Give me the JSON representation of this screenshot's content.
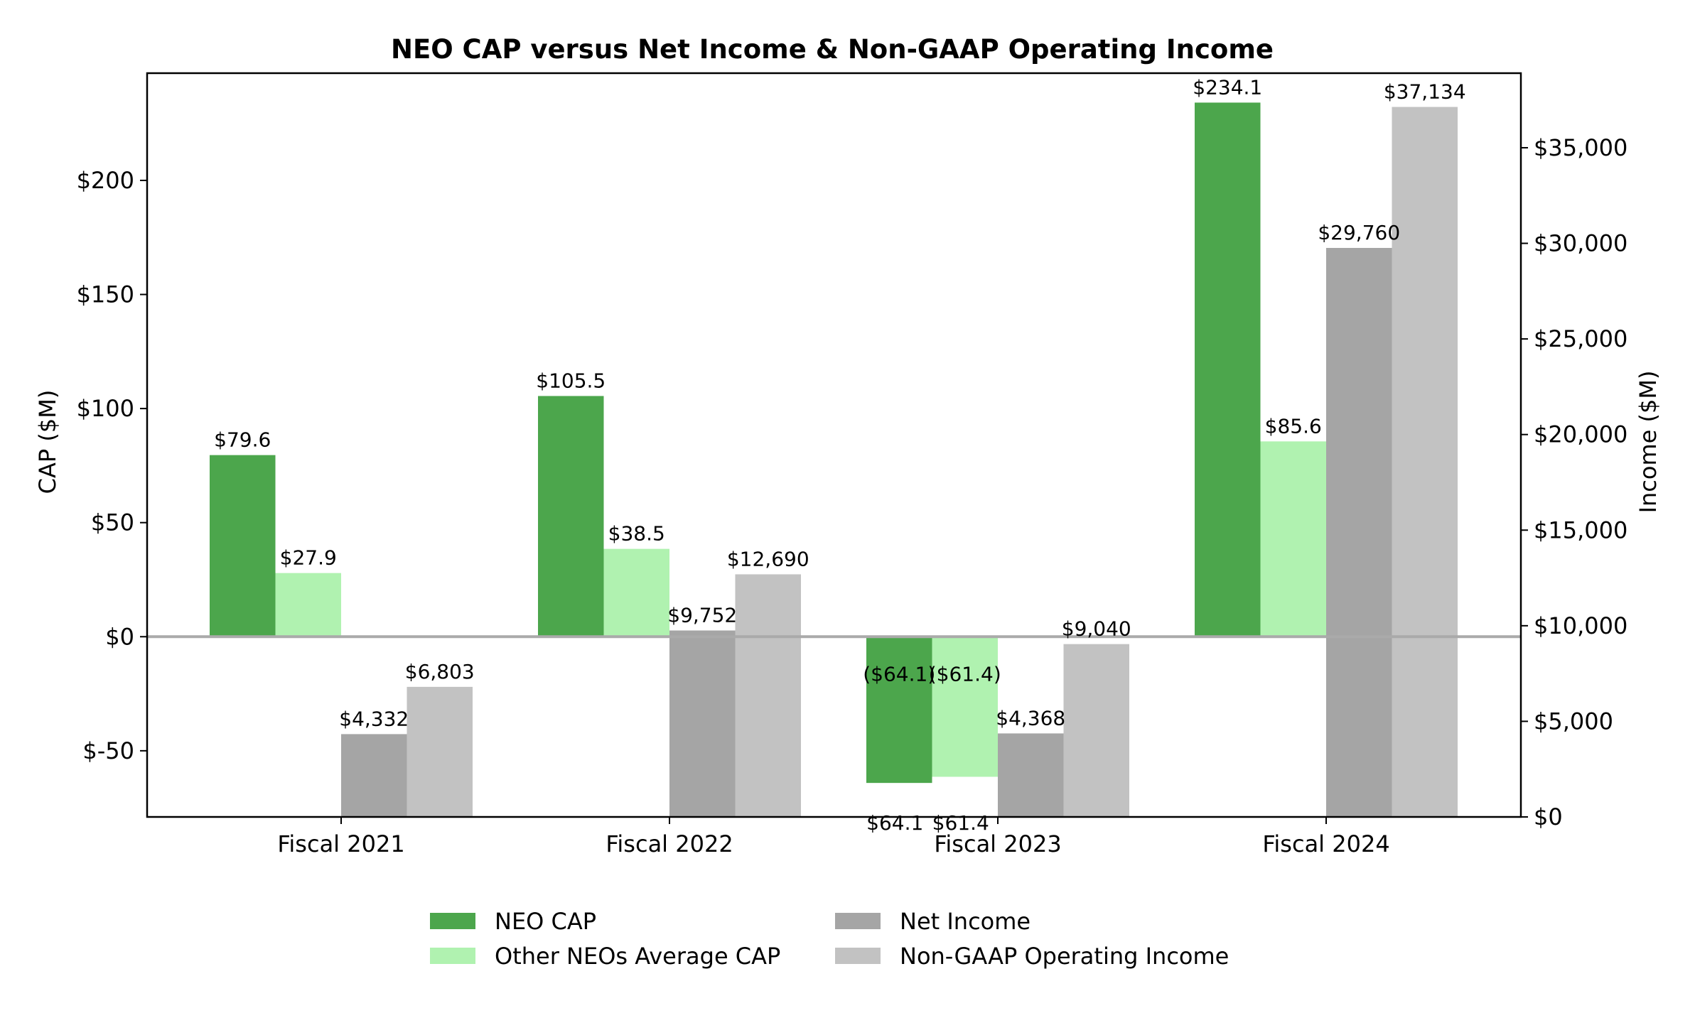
{
  "chart_data": {
    "type": "bar",
    "title": "NEO CAP versus Net Income & Non-GAAP Operating Income",
    "categories": [
      "Fiscal 2021",
      "Fiscal 2022",
      "Fiscal 2023",
      "Fiscal 2024"
    ],
    "left_axis": {
      "label": "CAP ($M)",
      "range": [
        -79,
        247
      ],
      "ticks": [
        -50,
        0,
        50,
        100,
        150,
        200
      ],
      "tick_labels": [
        "$-50",
        "$0",
        "$50",
        "$100",
        "$150",
        "$200"
      ]
    },
    "right_axis": {
      "label": "Income ($M)",
      "range": [
        0,
        38900
      ],
      "ticks": [
        0,
        5000,
        10000,
        15000,
        20000,
        25000,
        30000,
        35000
      ],
      "tick_labels": [
        "$0",
        "$5,000",
        "$10,000",
        "$15,000",
        "$20,000",
        "$25,000",
        "$30,000",
        "$35,000"
      ]
    },
    "series": [
      {
        "name": "NEO CAP",
        "axis": "left",
        "color": "#4ca64c",
        "values": [
          79.6,
          105.5,
          -64.1,
          234.1
        ],
        "labels": [
          "$79.6",
          "$105.5",
          "($64.1)",
          "$234.1"
        ],
        "extra_labels": [
          "",
          "",
          "$64.1",
          ""
        ]
      },
      {
        "name": "Other NEOs Average CAP",
        "axis": "left",
        "color": "#b0f2b0",
        "values": [
          27.9,
          38.5,
          -61.4,
          85.6
        ],
        "labels": [
          "$27.9",
          "$38.5",
          "($61.4)",
          "$85.6"
        ],
        "extra_labels": [
          "",
          "",
          "$61.4",
          ""
        ]
      },
      {
        "name": "Net Income",
        "axis": "right",
        "color": "#a5a5a5",
        "values": [
          4332,
          9752,
          4368,
          29760
        ],
        "labels": [
          "$4,332",
          "$9,752",
          "$4,368",
          "$29,760"
        ]
      },
      {
        "name": "Non-GAAP Operating Income",
        "axis": "right",
        "color": "#c2c2c2",
        "values": [
          6803,
          12690,
          9040,
          37134
        ],
        "labels": [
          "$6,803",
          "$12,690",
          "$9,040",
          "$37,134"
        ]
      }
    ],
    "negative_label_color": "#d40000",
    "zero_line_color": "#aaaaaa",
    "legend_placement": "bottom-center",
    "grid": false
  }
}
